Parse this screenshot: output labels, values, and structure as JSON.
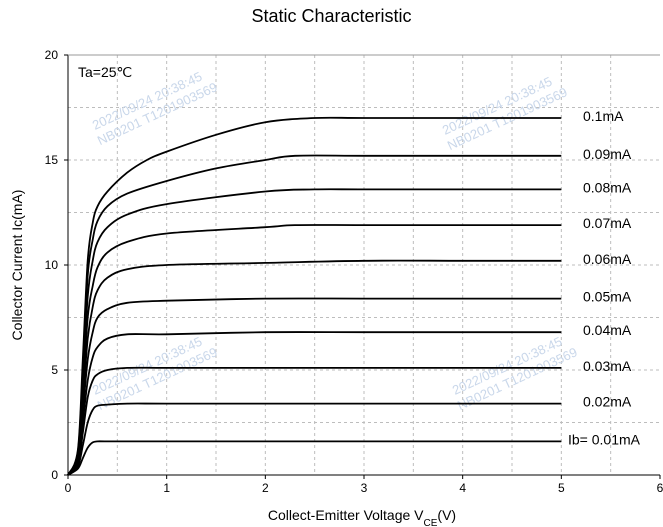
{
  "chart_data": {
    "type": "line",
    "title": "Static Characteristic",
    "xlabel": "Collect-Emitter Voltage",
    "xlabel_symbol": "V",
    "xlabel_subscript": "CE",
    "xlabel_unit": "(V)",
    "ylabel": "Collector  Current   Ic(mA)",
    "annotation": "Ta=25℃",
    "xlim": [
      0,
      6
    ],
    "ylim": [
      0,
      20
    ],
    "xticks": [
      0,
      1,
      2,
      3,
      4,
      5,
      6
    ],
    "yticks": [
      0,
      5,
      10,
      15,
      20
    ],
    "grid": "dashed",
    "series": [
      {
        "name": "Ib= 0.01mA",
        "x": [
          0,
          0.1,
          0.15,
          0.2,
          0.25,
          0.3,
          0.4,
          1,
          2,
          3,
          4,
          5
        ],
        "y": [
          0,
          0.3,
          0.8,
          1.3,
          1.55,
          1.6,
          1.6,
          1.6,
          1.6,
          1.6,
          1.6,
          1.6
        ]
      },
      {
        "name": "0.02mA",
        "x": [
          0,
          0.1,
          0.15,
          0.2,
          0.25,
          0.3,
          0.4,
          0.6,
          1,
          2,
          3,
          4,
          5
        ],
        "y": [
          0,
          0.4,
          1.4,
          2.5,
          3.1,
          3.3,
          3.35,
          3.4,
          3.4,
          3.4,
          3.4,
          3.4,
          3.4
        ]
      },
      {
        "name": "0.03mA",
        "x": [
          0,
          0.1,
          0.15,
          0.2,
          0.25,
          0.3,
          0.4,
          0.6,
          1,
          2,
          3,
          4,
          5
        ],
        "y": [
          0,
          0.5,
          2.0,
          3.7,
          4.5,
          4.8,
          5.0,
          5.1,
          5.1,
          5.1,
          5.1,
          5.1,
          5.1
        ]
      },
      {
        "name": "0.04mA",
        "x": [
          0,
          0.1,
          0.15,
          0.2,
          0.25,
          0.3,
          0.4,
          0.6,
          1,
          2,
          3,
          4,
          5
        ],
        "y": [
          0,
          0.6,
          2.5,
          4.5,
          5.6,
          6.1,
          6.5,
          6.7,
          6.7,
          6.8,
          6.8,
          6.8,
          6.8
        ]
      },
      {
        "name": "0.05mA",
        "x": [
          0,
          0.1,
          0.15,
          0.2,
          0.25,
          0.3,
          0.4,
          0.6,
          1,
          2,
          3,
          4,
          5
        ],
        "y": [
          0,
          0.7,
          3.0,
          5.5,
          6.8,
          7.5,
          7.9,
          8.2,
          8.3,
          8.4,
          8.4,
          8.4,
          8.4
        ]
      },
      {
        "name": "0.06mA",
        "x": [
          0,
          0.1,
          0.15,
          0.2,
          0.25,
          0.3,
          0.4,
          0.6,
          1,
          2,
          3,
          4,
          5
        ],
        "y": [
          0,
          0.8,
          3.5,
          6.5,
          8.0,
          8.8,
          9.4,
          9.8,
          10.0,
          10.1,
          10.2,
          10.2,
          10.2
        ]
      },
      {
        "name": "0.07mA",
        "x": [
          0,
          0.1,
          0.15,
          0.2,
          0.25,
          0.3,
          0.4,
          0.6,
          1,
          2,
          2.3,
          3,
          4,
          5
        ],
        "y": [
          0,
          0.9,
          4.0,
          7.5,
          9.0,
          9.9,
          10.6,
          11.1,
          11.5,
          11.8,
          11.9,
          11.9,
          11.9,
          11.9
        ]
      },
      {
        "name": "0.08mA",
        "x": [
          0,
          0.1,
          0.15,
          0.2,
          0.25,
          0.3,
          0.4,
          0.6,
          1,
          2,
          2.5,
          3,
          4,
          5
        ],
        "y": [
          0,
          1.0,
          4.5,
          8.5,
          10.2,
          11.1,
          11.8,
          12.4,
          12.9,
          13.5,
          13.6,
          13.6,
          13.6,
          13.6
        ]
      },
      {
        "name": "0.09mA",
        "x": [
          0,
          0.1,
          0.15,
          0.2,
          0.25,
          0.3,
          0.4,
          0.6,
          1,
          1.5,
          2,
          2.3,
          3,
          4,
          5
        ],
        "y": [
          0,
          1.1,
          5.0,
          9.5,
          11.2,
          12.1,
          12.8,
          13.4,
          14.0,
          14.6,
          15.0,
          15.2,
          15.2,
          15.2,
          15.2
        ]
      },
      {
        "name": "0.1mA",
        "x": [
          0,
          0.1,
          0.15,
          0.2,
          0.25,
          0.3,
          0.4,
          0.6,
          0.8,
          1,
          1.5,
          2,
          2.5,
          3,
          4,
          5
        ],
        "y": [
          0,
          1.2,
          5.5,
          10.2,
          12.0,
          12.8,
          13.5,
          14.4,
          15.0,
          15.4,
          16.2,
          16.8,
          17.0,
          17.0,
          17.0,
          17.0
        ]
      }
    ],
    "watermark": [
      "2022/09/24 20:38:45",
      "NB0201 T1201903569"
    ]
  }
}
